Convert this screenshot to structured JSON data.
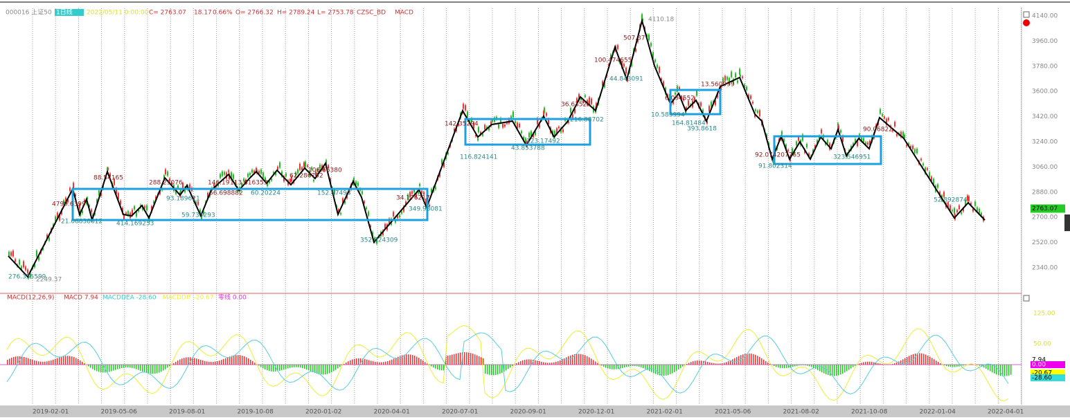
{
  "header": {
    "symbol": "000016 上证50",
    "period": "1日线",
    "datetime": "2022/05/11 0:00:00",
    "close": "C= 2763.07",
    "change": "18.17",
    "change_pct": "0.66%",
    "open": "O= 2766.32",
    "high": "H= 2789.24",
    "low": "L= 2753.78",
    "indicator1": "CZSC_BD",
    "indicator2": "MACD"
  },
  "price_axis": {
    "ticks": [
      "4140.00",
      "3960.00",
      "3780.00",
      "3600.00",
      "3420.00",
      "3240.00",
      "3060.00",
      "2880.00",
      "2700.00",
      "2520.00",
      "2340.00"
    ],
    "current": "2763.07"
  },
  "main_panel": {
    "peak_label": "4110.18",
    "low_label": "2249.37",
    "zigzag_labels": [
      "276.355599",
      "4799.6399",
      "21.06838612",
      "88.54165",
      "414.169253",
      "288.25076",
      "93.189621",
      "59.733293",
      "146.19",
      "56.698882",
      "113.616353",
      "60.20224",
      "62.286752",
      "106.66380",
      "152.67493",
      "352.824309",
      "34.176217",
      "349.98081",
      "142.35294",
      "116.824141",
      "43.853788",
      "123.17492",
      "36.63526",
      "216.88702",
      "100.474655",
      "44.843091",
      "507.37",
      "10.583994",
      "6.094552",
      "164.81484",
      "393.8618",
      "13.560999",
      "92.074207765",
      "91.802314",
      "323.546951",
      "90.06822",
      "52.892874"
    ]
  },
  "macd_panel": {
    "title": "MACD(12,26,9)",
    "macd": "MACD 7.94",
    "dea": "MACDDEA -28.60",
    "dif": "MACDDIF -20.67",
    "zero": "零线 0.00",
    "axis": [
      "125.00",
      "50.00"
    ],
    "badges": [
      "7.94",
      "0.00",
      "-20.67",
      "-28.60"
    ]
  },
  "dates": [
    "2019-02-01",
    "2019-05-06",
    "2019-08-01",
    "2019-10-08",
    "2020-01-02",
    "2020-04-01",
    "2020-07-01",
    "2020-09-01",
    "2020-12-01",
    "2021-02-01",
    "2021-05-06",
    "2021-08-02",
    "2021-10-08",
    "2022-01-04",
    "2022-04-01"
  ]
}
